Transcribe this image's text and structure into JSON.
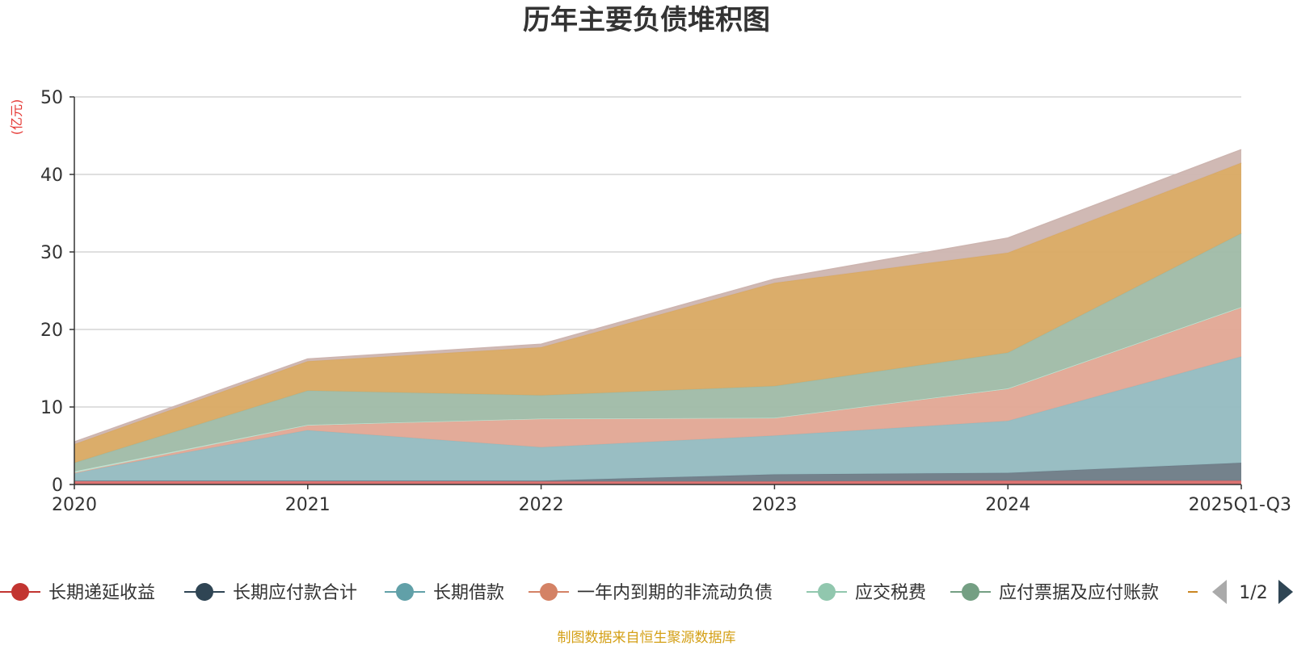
{
  "chart_data": {
    "type": "area",
    "stacked": true,
    "title": "历年主要负债堆积图",
    "ylabel": "(亿元)",
    "xlabel": "",
    "ylim": [
      0,
      50
    ],
    "yticks": [
      0,
      10,
      20,
      30,
      40,
      50
    ],
    "categories": [
      "2020",
      "2021",
      "2022",
      "2023",
      "2024",
      "2025Q1-Q3"
    ],
    "series": [
      {
        "name": "长期递延收益",
        "color": "#c23531",
        "fill": "#d96b6a",
        "values": [
          0.5,
          0.5,
          0.4,
          0.4,
          0.5,
          0.5
        ]
      },
      {
        "name": "长期应付款合计",
        "color": "#2f4554",
        "fill": "#6d7b86",
        "values": [
          0.0,
          0.0,
          0.1,
          0.9,
          1.0,
          2.3
        ]
      },
      {
        "name": "长期借款",
        "color": "#61a0a8",
        "fill": "#93bbc0",
        "values": [
          1.0,
          6.5,
          4.3,
          5.0,
          6.7,
          13.7
        ]
      },
      {
        "name": "一年内到期的非流动负债",
        "color": "#d48265",
        "fill": "#e1a794",
        "values": [
          0.0,
          0.6,
          3.7,
          2.3,
          4.1,
          6.3
        ]
      },
      {
        "name": "应交税费",
        "color": "#91c7ae",
        "fill": "#bfe0d0",
        "values": [
          0.2,
          0.1,
          0.0,
          0.0,
          0.1,
          0.1
        ]
      },
      {
        "name": "应付票据及应付账款",
        "color": "#749f83",
        "fill": "#9fbba6",
        "values": [
          1.1,
          4.4,
          3.0,
          4.1,
          4.6,
          9.5
        ]
      },
      {
        "name": "",
        "color": "#ca8622",
        "fill": "#d9a962",
        "values": [
          2.4,
          3.8,
          6.2,
          13.3,
          12.9,
          9.1
        ]
      },
      {
        "name": "",
        "color": "#bda29a",
        "fill": "#cdb5b0",
        "values": [
          0.3,
          0.3,
          0.4,
          0.5,
          1.9,
          1.7
        ]
      }
    ],
    "legend": {
      "position": "bottom",
      "page": "1/2"
    },
    "source": "制图数据来自恒生聚源数据库"
  }
}
